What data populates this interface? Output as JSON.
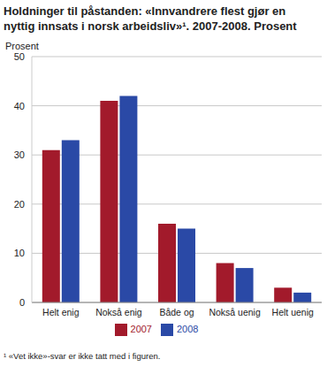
{
  "chart_data": {
    "type": "bar",
    "title": "Holdninger til påstanden: «Innvandrere flest gjør en nyttig innsats i norsk arbeidsliv»¹. 2007-2008. Prosent",
    "ylabel": "Prosent",
    "footnote": "¹ «Vet ikke»-svar er ikke tatt med i figuren.",
    "categories": [
      "Helt enig",
      "Nokså enig",
      "Både og",
      "Nokså uenig",
      "Helt uenig"
    ],
    "series": [
      {
        "name": "2007",
        "color": "#a21a2b",
        "values": [
          31,
          41,
          16,
          8,
          3
        ]
      },
      {
        "name": "2008",
        "color": "#2a49a6",
        "values": [
          33,
          42,
          15,
          7,
          2
        ]
      }
    ],
    "ylim": [
      0,
      50
    ],
    "yticks": [
      0,
      10,
      20,
      30,
      40,
      50
    ],
    "grid": true,
    "legend": "bottom"
  }
}
